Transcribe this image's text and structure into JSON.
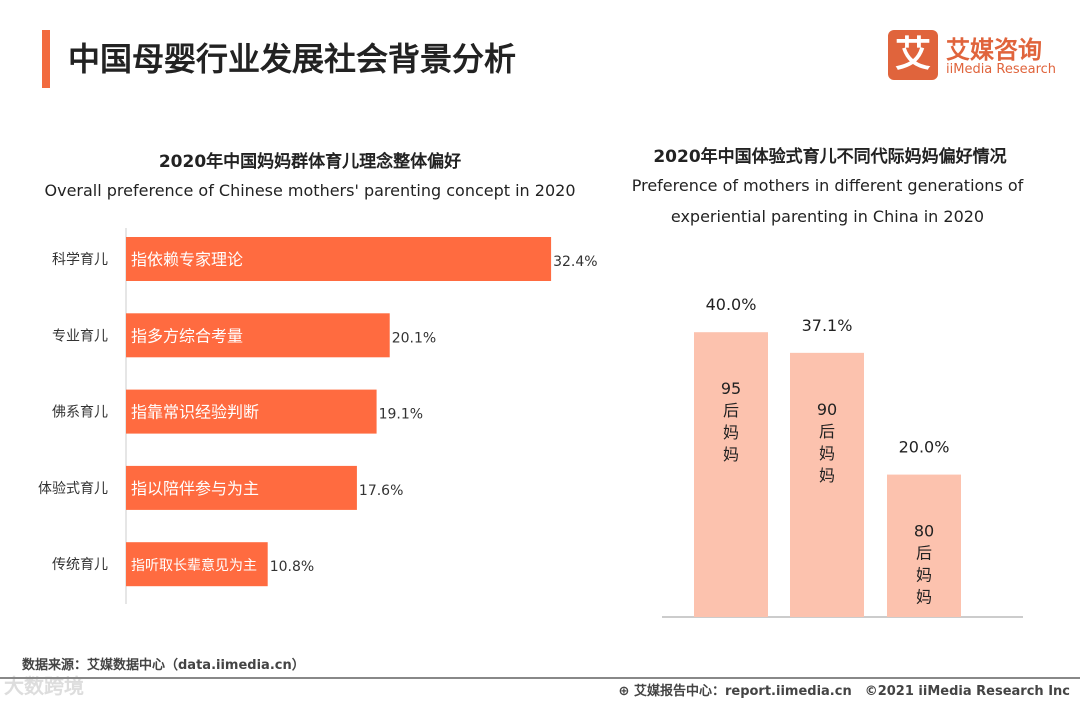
{
  "header": {
    "title": "中国母婴行业发展社会背景分析",
    "logo_mark": "艾",
    "logo_cn": "艾媒咨询",
    "logo_en": "iiMedia Research"
  },
  "chart_data": [
    {
      "type": "bar",
      "orientation": "horizontal",
      "title": "2020年中国妈妈群体育儿理念整体偏好",
      "subtitle": "Overall preference of Chinese mothers' parenting concept in 2020",
      "categories": [
        "科学育儿",
        "专业育儿",
        "佛系育儿",
        "体验式育儿",
        "传统育儿"
      ],
      "descriptions": [
        "指依赖专家理论",
        "指多方综合考量",
        "指靠常识经验判断",
        "指以陪伴参与为主",
        "指听取长辈意见为主"
      ],
      "values": [
        32.4,
        20.1,
        19.1,
        17.6,
        10.8
      ],
      "labels": [
        "32.4%",
        "20.1%",
        "19.1%",
        "17.6%",
        "10.8%"
      ],
      "unit": "%",
      "color": "#ff6b40"
    },
    {
      "type": "bar",
      "title": "2020年中国体验式育儿不同代际妈妈偏好情况",
      "subtitle_line1": "Preference of mothers in different generations of",
      "subtitle_line2": "experiential parenting in China in 2020",
      "categories": [
        "95后妈妈",
        "90后妈妈",
        "80后妈妈"
      ],
      "bar_text": [
        [
          "95",
          "后",
          "妈",
          "妈"
        ],
        [
          "90",
          "后",
          "妈",
          "妈"
        ],
        [
          "80",
          "后",
          "妈",
          "妈"
        ]
      ],
      "values": [
        40.0,
        37.1,
        20.0
      ],
      "labels": [
        "40.0%",
        "37.1%",
        "20.0%"
      ],
      "unit": "%",
      "color": "#fcc2ae"
    }
  ],
  "footer": {
    "source": "数据来源：艾媒数据中心（data.iimedia.cn）",
    "report": "⊕ 艾媒报告中心：report.iimedia.cn　©2021  iiMedia Research  Inc",
    "watermark": "大数跨境"
  }
}
